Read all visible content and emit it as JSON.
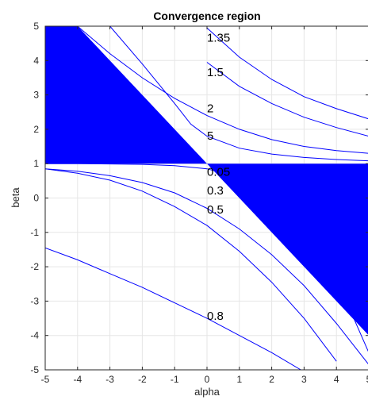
{
  "chart_data": {
    "type": "line",
    "title": "Convergence region",
    "xlabel": "alpha",
    "ylabel": "beta",
    "xlim": [
      -5,
      5
    ],
    "ylim": [
      -5,
      5
    ],
    "grid": true,
    "xticks": [
      "-5",
      "-4",
      "-3",
      "-2",
      "-1",
      "0",
      "1",
      "2",
      "3",
      "4",
      "5"
    ],
    "yticks": [
      "5",
      "4",
      "3",
      "2",
      "1",
      "0",
      "-1",
      "-2",
      "-3",
      "-4",
      "-5"
    ],
    "colors": {
      "region": "#0000ff",
      "curve": "#0000ff",
      "grid": "#e6e6e6",
      "axes": "#262626"
    },
    "regions": [
      {
        "vertices": [
          [
            -5,
            5
          ],
          [
            -4,
            5
          ],
          [
            0,
            1
          ],
          [
            -5,
            1
          ]
        ]
      },
      {
        "vertices": [
          [
            0,
            1
          ],
          [
            5,
            1
          ],
          [
            5,
            -4
          ],
          [
            0,
            1
          ]
        ]
      }
    ],
    "labels": [
      {
        "text": "1.35",
        "x": 0.0,
        "y": 4.55
      },
      {
        "text": "1.5",
        "x": 0.0,
        "y": 3.55
      },
      {
        "text": "2",
        "x": 0.0,
        "y": 2.5
      },
      {
        "text": "5",
        "x": 0.0,
        "y": 1.7
      },
      {
        "text": "0.05",
        "x": 0.0,
        "y": 0.65
      },
      {
        "text": "0.3",
        "x": 0.0,
        "y": 0.1
      },
      {
        "text": "0.5",
        "x": 0.0,
        "y": -0.45
      },
      {
        "text": "0.8",
        "x": 0.0,
        "y": -3.55
      }
    ],
    "series": [
      {
        "x": [
          -5,
          -4,
          -3,
          -2,
          -1,
          0,
          1,
          2,
          3,
          4,
          5
        ],
        "y": [
          null,
          null,
          null,
          null,
          null,
          4.95,
          4.1,
          3.45,
          2.95,
          2.6,
          2.3
        ]
      },
      {
        "x": [
          -5,
          -4,
          -3,
          -2,
          -1,
          0,
          1,
          2,
          3,
          4,
          5
        ],
        "y": [
          null,
          null,
          null,
          null,
          null,
          3.95,
          3.25,
          2.75,
          2.35,
          2.05,
          1.8
        ]
      },
      {
        "x": [
          -5,
          -4,
          -3,
          -2,
          -1,
          0,
          1,
          2,
          3,
          4,
          5
        ],
        "y": [
          null,
          5.0,
          4.2,
          3.5,
          2.9,
          2.4,
          2.0,
          1.7,
          1.5,
          1.38,
          1.3
        ]
      },
      {
        "x": [
          -5,
          -4,
          -3,
          -2,
          -1,
          -0.5,
          0,
          1,
          2,
          3,
          4,
          5
        ],
        "y": [
          null,
          null,
          5.0,
          3.9,
          2.75,
          2.15,
          1.8,
          1.45,
          1.28,
          1.18,
          1.12,
          1.08
        ]
      },
      {
        "x": [
          -5,
          -4,
          -3,
          -2,
          -1,
          0,
          1,
          2,
          3,
          4,
          5
        ],
        "y": [
          1.0,
          1.0,
          0.99,
          0.98,
          0.94,
          0.85,
          0.6,
          0.05,
          -0.9,
          -2.35,
          -4.5
        ]
      },
      {
        "x": [
          -5,
          -4,
          -3,
          -2,
          -1,
          0,
          1,
          2,
          3,
          4,
          5
        ],
        "y": [
          0.85,
          0.78,
          0.65,
          0.45,
          0.15,
          -0.3,
          -0.9,
          -1.65,
          -2.55,
          -3.65,
          -4.85
        ]
      },
      {
        "x": [
          -5,
          -4,
          -3,
          -2,
          -1,
          0,
          1,
          2,
          3,
          4
        ],
        "y": [
          0.85,
          0.72,
          0.52,
          0.2,
          -0.25,
          -0.8,
          -1.55,
          -2.45,
          -3.5,
          -4.75
        ]
      },
      {
        "x": [
          -5,
          -4,
          -3,
          -2,
          -1,
          0,
          1,
          2,
          2.9
        ],
        "y": [
          -1.45,
          -1.8,
          -2.2,
          -2.6,
          -3.05,
          -3.5,
          -4.0,
          -4.5,
          -5.0
        ]
      }
    ]
  }
}
